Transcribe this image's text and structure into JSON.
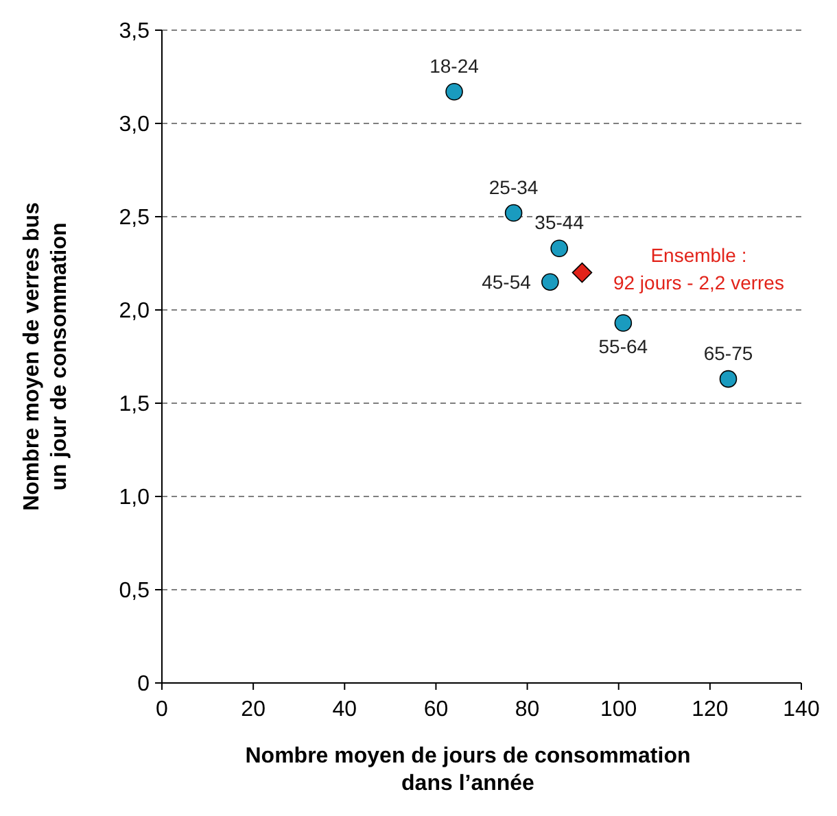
{
  "chart_data": {
    "type": "scatter",
    "xlabel": "Nombre moyen de jours de consommation\ndans l’année",
    "ylabel": "Nombre moyen de verres bus\nun jour de consommation",
    "series": [
      {
        "color": "#1a9bbf",
        "marker": "circle",
        "x": [
          64,
          77,
          87,
          85,
          101,
          124
        ],
        "values": [
          3.17,
          2.52,
          2.33,
          2.15,
          1.93,
          1.63
        ]
      },
      {
        "color": "#e2231a",
        "marker": "diamond",
        "x": [
          92
        ],
        "values": [
          2.2
        ]
      }
    ],
    "xlim": [
      0,
      140
    ],
    "xticks": [
      0,
      20,
      40,
      60,
      80,
      100,
      120,
      140
    ],
    "ylim": [
      0,
      3.5
    ],
    "yticks": [
      0,
      {
        "value": 0.5,
        "label": "0,5"
      },
      {
        "value": 1,
        "label": "1,0"
      },
      {
        "value": 1.5,
        "label": "1,5"
      },
      {
        "value": 2,
        "label": "2,0"
      },
      {
        "value": 2.5,
        "label": "2,5"
      },
      {
        "value": 3,
        "label": "3,0"
      },
      {
        "value": 3.5,
        "label": "3,5"
      }
    ],
    "grid": "y",
    "annotations": [
      {
        "text": "18-24",
        "x": 64,
        "y": 3.17
      },
      {
        "text": "25-34",
        "x": 77,
        "y": 2.52
      },
      {
        "text": "35-44",
        "x": 87,
        "y": 2.33
      },
      {
        "text": "45-54",
        "x": 85,
        "y": 2.15
      },
      {
        "text": "55-64",
        "x": 101,
        "y": 1.93
      },
      {
        "text": "65-75",
        "x": 124,
        "y": 1.63
      },
      {
        "text": "Ensemble :\n92 jours - 2,2 verres",
        "x": 92,
        "y": 2.2
      }
    ]
  }
}
